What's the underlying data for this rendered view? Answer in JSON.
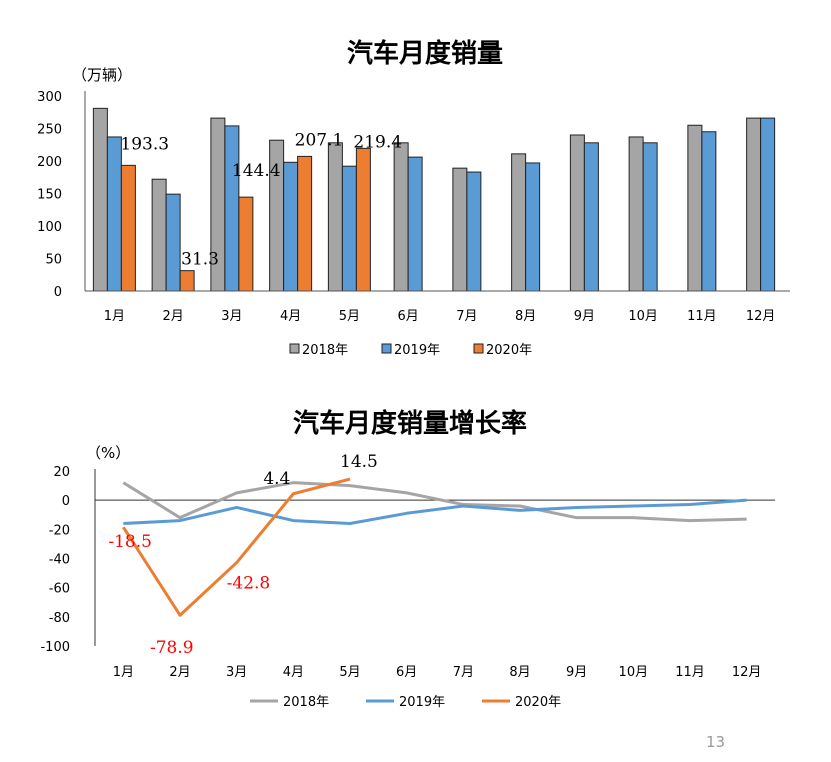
{
  "page_number": "13",
  "colors": {
    "s2018": "#A5A5A5",
    "s2019": "#5B9BD5",
    "s2020": "#ED7D31",
    "label_red": "#FF0000"
  },
  "chart_data": [
    {
      "type": "bar",
      "title": "汽车月度销量",
      "ylabel": "（万辆）",
      "xlabel": "",
      "ylim": [
        0,
        300
      ],
      "yticks": [
        0,
        50,
        100,
        150,
        200,
        250,
        300
      ],
      "categories": [
        "1月",
        "2月",
        "3月",
        "4月",
        "5月",
        "6月",
        "7月",
        "8月",
        "9月",
        "10月",
        "11月",
        "12月"
      ],
      "legend_position": "bottom",
      "series": [
        {
          "name": "2018年",
          "values": [
            281,
            172,
            266,
            232,
            228,
            228,
            189,
            211,
            240,
            237,
            255,
            266
          ]
        },
        {
          "name": "2019年",
          "values": [
            237,
            149,
            254,
            198,
            192,
            206,
            183,
            197,
            228,
            228,
            245,
            266
          ]
        },
        {
          "name": "2020年",
          "values": [
            193.3,
            31.3,
            144.4,
            207.1,
            219.4,
            null,
            null,
            null,
            null,
            null,
            null,
            null
          ]
        }
      ],
      "data_labels": [
        "193.3",
        "31.3",
        "144.4",
        "207.1",
        "219.4"
      ]
    },
    {
      "type": "line",
      "title": "汽车月度销量增长率",
      "ylabel": "（%）",
      "xlabel": "",
      "ylim": [
        -100,
        20
      ],
      "yticks": [
        20,
        0,
        -20,
        -40,
        -60,
        -80,
        -100
      ],
      "categories": [
        "1月",
        "2月",
        "3月",
        "4月",
        "5月",
        "6月",
        "7月",
        "8月",
        "9月",
        "10月",
        "11月",
        "12月"
      ],
      "legend_position": "bottom",
      "series": [
        {
          "name": "2018年",
          "values": [
            12,
            -12,
            5,
            12,
            10,
            5,
            -3,
            -4,
            -12,
            -12,
            -14,
            -13
          ]
        },
        {
          "name": "2019年",
          "values": [
            -16,
            -14,
            -5,
            -14,
            -16,
            -9,
            -4,
            -7,
            -5,
            -4,
            -3,
            0
          ]
        },
        {
          "name": "2020年",
          "values": [
            -18.5,
            -78.9,
            -42.8,
            4.4,
            14.5,
            null,
            null,
            null,
            null,
            null,
            null,
            null
          ]
        }
      ],
      "data_labels": [
        "-18.5",
        "-78.9",
        "-42.8",
        "4.4",
        "14.5"
      ]
    }
  ]
}
